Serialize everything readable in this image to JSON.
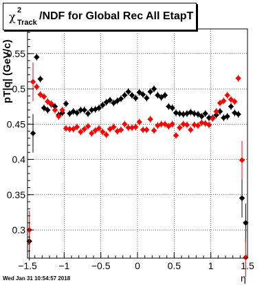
{
  "title": {
    "symbol": "χ",
    "superscript": "2",
    "subscript": "Track",
    "text": "/NDF for Global Rec All EtapT"
  },
  "timestamp": "Wed Jan 31 10:54:57 2018",
  "chart_data": {
    "type": "scatter",
    "xlabel": "η",
    "ylabel": "pT|q| (GeV/c)",
    "xlim": [
      -1.5,
      1.5
    ],
    "ylim": [
      0.26,
      0.585
    ],
    "x_ticks": [
      "−1.5",
      "−1",
      "−0.5",
      "0",
      "0.5",
      "1",
      "1.5"
    ],
    "y_ticks": [
      "0.3",
      "0.35",
      "0.4",
      "0.45",
      "0.5",
      "0.55"
    ],
    "grid": true,
    "series": [
      {
        "color": "#000000",
        "points": [
          [
            -1.475,
            0.284
          ],
          [
            -1.425,
            0.437
          ],
          [
            -1.375,
            0.545
          ],
          [
            -1.325,
            0.514
          ],
          [
            -1.275,
            0.473
          ],
          [
            -1.225,
            0.47
          ],
          [
            -1.175,
            0.478
          ],
          [
            -1.125,
            0.475
          ],
          [
            -1.075,
            0.463
          ],
          [
            -1.025,
            0.466
          ],
          [
            -0.975,
            0.479
          ],
          [
            -0.925,
            0.465
          ],
          [
            -0.875,
            0.468
          ],
          [
            -0.825,
            0.466
          ],
          [
            -0.775,
            0.47
          ],
          [
            -0.725,
            0.47
          ],
          [
            -0.675,
            0.465
          ],
          [
            -0.625,
            0.47
          ],
          [
            -0.575,
            0.471
          ],
          [
            -0.525,
            0.473
          ],
          [
            -0.475,
            0.477
          ],
          [
            -0.425,
            0.481
          ],
          [
            -0.375,
            0.484
          ],
          [
            -0.325,
            0.48
          ],
          [
            -0.275,
            0.483
          ],
          [
            -0.225,
            0.486
          ],
          [
            -0.175,
            0.491
          ],
          [
            -0.125,
            0.496
          ],
          [
            -0.075,
            0.491
          ],
          [
            -0.025,
            0.487
          ],
          [
            0.025,
            0.495
          ],
          [
            0.075,
            0.492
          ],
          [
            0.125,
            0.487
          ],
          [
            0.175,
            0.496
          ],
          [
            0.225,
            0.5
          ],
          [
            0.275,
            0.491
          ],
          [
            0.325,
            0.488
          ],
          [
            0.375,
            0.491
          ],
          [
            0.425,
            0.475
          ],
          [
            0.475,
            0.473
          ],
          [
            0.525,
            0.466
          ],
          [
            0.575,
            0.465
          ],
          [
            0.625,
            0.464
          ],
          [
            0.675,
            0.465
          ],
          [
            0.725,
            0.467
          ],
          [
            0.775,
            0.465
          ],
          [
            0.825,
            0.464
          ],
          [
            0.875,
            0.461
          ],
          [
            0.925,
            0.465
          ],
          [
            0.975,
            0.459
          ],
          [
            1.025,
            0.459
          ],
          [
            1.075,
            0.463
          ],
          [
            1.125,
            0.468
          ],
          [
            1.175,
            0.459
          ],
          [
            1.225,
            0.461
          ],
          [
            1.275,
            0.475
          ],
          [
            1.325,
            0.466
          ],
          [
            1.375,
            0.464
          ],
          [
            1.425,
            0.345
          ],
          [
            1.475,
            0.31
          ]
        ]
      },
      {
        "color": "#ff0000",
        "points": [
          [
            -1.475,
            0.3
          ],
          [
            -1.425,
            0.51
          ],
          [
            -1.375,
            0.503
          ],
          [
            -1.325,
            0.492
          ],
          [
            -1.275,
            0.489
          ],
          [
            -1.225,
            0.482
          ],
          [
            -1.175,
            0.479
          ],
          [
            -1.125,
            0.47
          ],
          [
            -1.075,
            0.461
          ],
          [
            -1.025,
            0.47
          ],
          [
            -0.975,
            0.444
          ],
          [
            -0.925,
            0.443
          ],
          [
            -0.875,
            0.443
          ],
          [
            -0.825,
            0.446
          ],
          [
            -0.775,
            0.439
          ],
          [
            -0.725,
            0.443
          ],
          [
            -0.675,
            0.447
          ],
          [
            -0.625,
            0.437
          ],
          [
            -0.575,
            0.441
          ],
          [
            -0.525,
            0.444
          ],
          [
            -0.475,
            0.439
          ],
          [
            -0.425,
            0.435
          ],
          [
            -0.375,
            0.443
          ],
          [
            -0.325,
            0.446
          ],
          [
            -0.275,
            0.44
          ],
          [
            -0.225,
            0.442
          ],
          [
            -0.175,
            0.45
          ],
          [
            -0.125,
            0.445
          ],
          [
            -0.075,
            0.445
          ],
          [
            -0.025,
            0.446
          ],
          [
            0.025,
            0.453
          ],
          [
            0.075,
            0.442
          ],
          [
            0.125,
            0.442
          ],
          [
            0.175,
            0.457
          ],
          [
            0.225,
            0.441
          ],
          [
            0.275,
            0.448
          ],
          [
            0.325,
            0.45
          ],
          [
            0.375,
            0.45
          ],
          [
            0.425,
            0.447
          ],
          [
            0.475,
            0.45
          ],
          [
            0.525,
            0.434
          ],
          [
            0.575,
            0.445
          ],
          [
            0.625,
            0.45
          ],
          [
            0.675,
            0.449
          ],
          [
            0.725,
            0.442
          ],
          [
            0.775,
            0.449
          ],
          [
            0.825,
            0.448
          ],
          [
            0.875,
            0.452
          ],
          [
            0.925,
            0.451
          ],
          [
            0.975,
            0.449
          ],
          [
            1.025,
            0.458
          ],
          [
            1.075,
            0.468
          ],
          [
            1.125,
            0.48
          ],
          [
            1.175,
            0.483
          ],
          [
            1.225,
            0.491
          ],
          [
            1.275,
            0.485
          ],
          [
            1.325,
            0.482
          ],
          [
            1.375,
            0.515
          ],
          [
            1.425,
            0.399
          ],
          [
            1.475,
            0.261
          ]
        ]
      }
    ]
  }
}
